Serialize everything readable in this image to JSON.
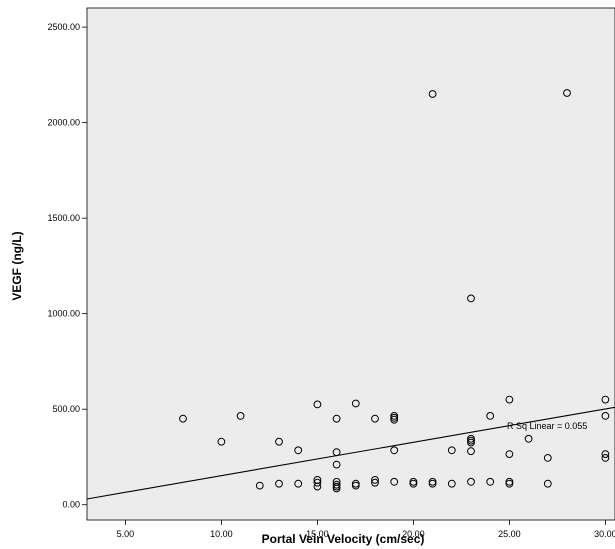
{
  "chart_data": {
    "type": "scatter",
    "xlabel": "Portal Vein Velocity (cm/sec)",
    "ylabel": "VEGF (ng/L)",
    "xlim": [
      3.0,
      30.5
    ],
    "ylim": [
      -80,
      2600
    ],
    "xticks": [
      5,
      10,
      15,
      20,
      25,
      30
    ],
    "xtick_labels": [
      "5.00",
      "10.00",
      "15.00",
      "20.00",
      "25.00",
      "30.00"
    ],
    "yticks": [
      0,
      500,
      1000,
      1500,
      2000,
      2500
    ],
    "ytick_labels": [
      "0.00",
      "500.00",
      "1000.00",
      "1500.00",
      "2000.00",
      "2500.00"
    ],
    "grid": false,
    "background": "#ececec",
    "marker": "open-circle",
    "points": [
      {
        "x": 8,
        "y": 450
      },
      {
        "x": 10,
        "y": 330
      },
      {
        "x": 11,
        "y": 465
      },
      {
        "x": 12,
        "y": 100
      },
      {
        "x": 13,
        "y": 110
      },
      {
        "x": 13,
        "y": 330
      },
      {
        "x": 14,
        "y": 110
      },
      {
        "x": 14,
        "y": 285
      },
      {
        "x": 15,
        "y": 525
      },
      {
        "x": 15,
        "y": 130
      },
      {
        "x": 15,
        "y": 115
      },
      {
        "x": 15,
        "y": 95
      },
      {
        "x": 16,
        "y": 450
      },
      {
        "x": 16,
        "y": 275
      },
      {
        "x": 16,
        "y": 210
      },
      {
        "x": 16,
        "y": 120
      },
      {
        "x": 16,
        "y": 105
      },
      {
        "x": 16,
        "y": 95
      },
      {
        "x": 16,
        "y": 85
      },
      {
        "x": 17,
        "y": 530
      },
      {
        "x": 17,
        "y": 110
      },
      {
        "x": 17,
        "y": 100
      },
      {
        "x": 18,
        "y": 450
      },
      {
        "x": 18,
        "y": 130
      },
      {
        "x": 18,
        "y": 115
      },
      {
        "x": 19,
        "y": 465
      },
      {
        "x": 19,
        "y": 455
      },
      {
        "x": 19,
        "y": 445
      },
      {
        "x": 19,
        "y": 285
      },
      {
        "x": 19,
        "y": 120
      },
      {
        "x": 20,
        "y": 120
      },
      {
        "x": 20,
        "y": 110
      },
      {
        "x": 21,
        "y": 2150
      },
      {
        "x": 21,
        "y": 120
      },
      {
        "x": 21,
        "y": 110
      },
      {
        "x": 22,
        "y": 285
      },
      {
        "x": 22,
        "y": 110
      },
      {
        "x": 23,
        "y": 1080
      },
      {
        "x": 23,
        "y": 345
      },
      {
        "x": 23,
        "y": 335
      },
      {
        "x": 23,
        "y": 325
      },
      {
        "x": 23,
        "y": 280
      },
      {
        "x": 23,
        "y": 120
      },
      {
        "x": 24,
        "y": 465
      },
      {
        "x": 24,
        "y": 120
      },
      {
        "x": 25,
        "y": 550
      },
      {
        "x": 25,
        "y": 265
      },
      {
        "x": 25,
        "y": 120
      },
      {
        "x": 25,
        "y": 110
      },
      {
        "x": 26,
        "y": 345
      },
      {
        "x": 27,
        "y": 245
      },
      {
        "x": 27,
        "y": 110
      },
      {
        "x": 28,
        "y": 2155
      },
      {
        "x": 30,
        "y": 550
      },
      {
        "x": 30,
        "y": 465
      },
      {
        "x": 30,
        "y": 265
      },
      {
        "x": 30,
        "y": 245
      }
    ],
    "fit_line": {
      "x": [
        3.0,
        30.5
      ],
      "y": [
        30,
        510
      ]
    },
    "annotation": "R Sq Linear = 0.055"
  }
}
